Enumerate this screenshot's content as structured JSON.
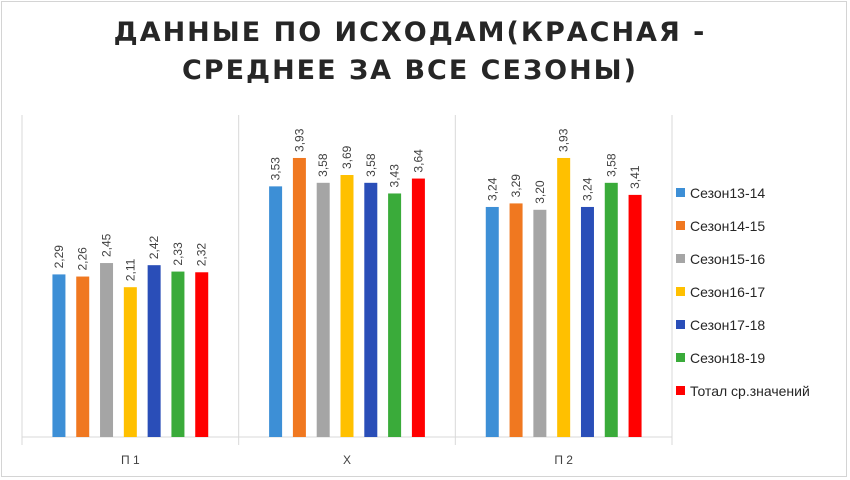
{
  "chart_data": {
    "type": "bar",
    "title": "ДАННЫЕ ПО ИСХОДАМ(КРАСНАЯ -\nСРЕДНЕЕ ЗА ВСЕ СЕЗОНЫ)",
    "categories": [
      "П 1",
      "Х",
      "П 2"
    ],
    "ylim": [
      0,
      4.6
    ],
    "grid": false,
    "legend_position": "right",
    "series": [
      {
        "name": "Сезон13-14",
        "color": "#3d8fd6",
        "values": [
          2.29,
          3.53,
          3.24
        ],
        "labels": [
          "2,29",
          "3,53",
          "3,24"
        ]
      },
      {
        "name": "Сезон14-15",
        "color": "#f07820",
        "values": [
          2.26,
          3.93,
          3.29
        ],
        "labels": [
          "2,26",
          "3,93",
          "3,29"
        ]
      },
      {
        "name": "Сезон15-16",
        "color": "#a5a5a5",
        "values": [
          2.45,
          3.58,
          3.2
        ],
        "labels": [
          "2,45",
          "3,58",
          "3,20"
        ]
      },
      {
        "name": "Сезон16-17",
        "color": "#ffc000",
        "values": [
          2.11,
          3.69,
          3.93
        ],
        "labels": [
          "2,11",
          "3,69",
          "3,93"
        ]
      },
      {
        "name": "Сезон17-18",
        "color": "#2a4eb8",
        "values": [
          2.42,
          3.58,
          3.24
        ],
        "labels": [
          "2,42",
          "3,58",
          "3,24"
        ]
      },
      {
        "name": "Сезон18-19",
        "color": "#3aab3a",
        "values": [
          2.33,
          3.43,
          3.58
        ],
        "labels": [
          "2,33",
          "3,43",
          "3,58"
        ]
      },
      {
        "name": "Тотал ср.значений",
        "color": "#ff0000",
        "values": [
          2.32,
          3.64,
          3.41
        ],
        "labels": [
          "2,32",
          "3,64",
          "3,41"
        ]
      }
    ]
  }
}
